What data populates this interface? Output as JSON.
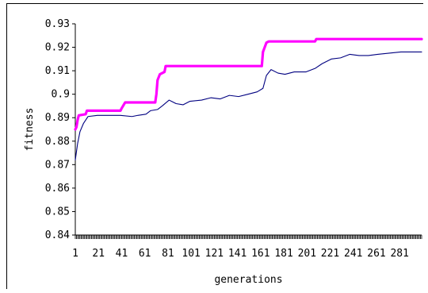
{
  "chart_data": {
    "type": "line",
    "xlabel": "generations",
    "ylabel": "fitness",
    "xlim": [
      1,
      300
    ],
    "ylim": [
      0.84,
      0.93
    ],
    "x_tick_labels": [
      "1",
      "21",
      "41",
      "61",
      "81",
      "101",
      "121",
      "141",
      "161",
      "181",
      "201",
      "221",
      "241",
      "261",
      "281"
    ],
    "y_tick_labels": [
      "0.84",
      "0.85",
      "0.86",
      "0.87",
      "0.88",
      "0.89",
      "0.9",
      "0.91",
      "0.92",
      "0.93"
    ],
    "grid": false,
    "legend": "none",
    "series": [
      {
        "color": "#ff00ff",
        "style": "thick-step",
        "points": [
          [
            1,
            0.885
          ],
          [
            2,
            0.886
          ],
          [
            3,
            0.889
          ],
          [
            4,
            0.891
          ],
          [
            10,
            0.8915
          ],
          [
            11,
            0.893
          ],
          [
            40,
            0.893
          ],
          [
            41,
            0.894
          ],
          [
            44,
            0.8965
          ],
          [
            70,
            0.8965
          ],
          [
            71,
            0.9
          ],
          [
            72,
            0.906
          ],
          [
            74,
            0.9085
          ],
          [
            78,
            0.9095
          ],
          [
            79,
            0.912
          ],
          [
            162,
            0.912
          ],
          [
            163,
            0.918
          ],
          [
            166,
            0.922
          ],
          [
            168,
            0.9225
          ],
          [
            208,
            0.9225
          ],
          [
            209,
            0.9235
          ],
          [
            300,
            0.9235
          ]
        ]
      },
      {
        "color": "#000080",
        "style": "thin",
        "points": [
          [
            1,
            0.872
          ],
          [
            3,
            0.879
          ],
          [
            5,
            0.884
          ],
          [
            8,
            0.8875
          ],
          [
            12,
            0.8905
          ],
          [
            20,
            0.891
          ],
          [
            40,
            0.891
          ],
          [
            50,
            0.8905
          ],
          [
            55,
            0.891
          ],
          [
            62,
            0.8915
          ],
          [
            66,
            0.893
          ],
          [
            72,
            0.8935
          ],
          [
            76,
            0.895
          ],
          [
            82,
            0.8975
          ],
          [
            88,
            0.896
          ],
          [
            94,
            0.8955
          ],
          [
            100,
            0.897
          ],
          [
            110,
            0.8975
          ],
          [
            118,
            0.8985
          ],
          [
            126,
            0.898
          ],
          [
            134,
            0.8995
          ],
          [
            142,
            0.899
          ],
          [
            150,
            0.9
          ],
          [
            158,
            0.901
          ],
          [
            163,
            0.9025
          ],
          [
            166,
            0.908
          ],
          [
            170,
            0.9105
          ],
          [
            176,
            0.909
          ],
          [
            182,
            0.9085
          ],
          [
            190,
            0.9095
          ],
          [
            200,
            0.9095
          ],
          [
            208,
            0.911
          ],
          [
            214,
            0.913
          ],
          [
            222,
            0.915
          ],
          [
            230,
            0.9155
          ],
          [
            238,
            0.917
          ],
          [
            246,
            0.9165
          ],
          [
            254,
            0.9165
          ],
          [
            262,
            0.917
          ],
          [
            272,
            0.9175
          ],
          [
            282,
            0.918
          ],
          [
            300,
            0.918
          ]
        ]
      }
    ]
  }
}
